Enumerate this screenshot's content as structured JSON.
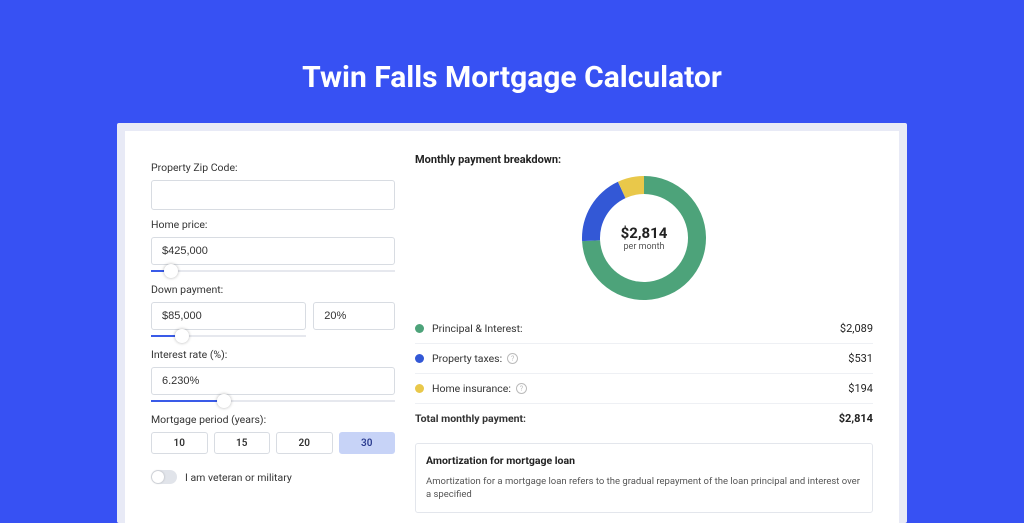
{
  "colors": {
    "page_bg": "#3751f3",
    "panel_wrap_bg": "#e8eaf6",
    "panel_bg": "#ffffff",
    "input_border": "#d8dce2",
    "slider_fill": "#3a5be8",
    "slider_rail": "#e6e8ee",
    "period_active_bg": "#c7d3f7",
    "divider": "#eef0f4"
  },
  "title": "Twin Falls Mortgage Calculator",
  "fields": {
    "zip": {
      "label": "Property Zip Code:",
      "value": ""
    },
    "home_price": {
      "label": "Home price:",
      "value": "$425,000",
      "slider_pct": 8
    },
    "down_payment": {
      "label": "Down payment:",
      "amount": "$85,000",
      "pct": "20%",
      "slider_pct": 20
    },
    "interest_rate": {
      "label": "Interest rate (%):",
      "value": "6.230%",
      "slider_pct": 30
    },
    "period": {
      "label": "Mortgage period (years):",
      "options": [
        "10",
        "15",
        "20",
        "30"
      ],
      "active_index": 3
    },
    "veteran": {
      "label": "I am veteran or military",
      "on": false
    }
  },
  "breakdown": {
    "title": "Monthly payment breakdown:",
    "center_amount": "$2,814",
    "center_sub": "per month",
    "donut": {
      "size": 124,
      "thickness": 18,
      "segments": [
        {
          "color": "#4da37a",
          "pct": 74.2
        },
        {
          "color": "#3358d6",
          "pct": 18.9
        },
        {
          "color": "#e9c84a",
          "pct": 6.9
        }
      ]
    },
    "rows": [
      {
        "swatch": "#4da37a",
        "label": "Principal & Interest:",
        "value": "$2,089",
        "help": false
      },
      {
        "swatch": "#3358d6",
        "label": "Property taxes:",
        "value": "$531",
        "help": true
      },
      {
        "swatch": "#e9c84a",
        "label": "Home insurance:",
        "value": "$194",
        "help": true
      }
    ],
    "total": {
      "label": "Total monthly payment:",
      "value": "$2,814"
    }
  },
  "amortization": {
    "title": "Amortization for mortgage loan",
    "text": "Amortization for a mortgage loan refers to the gradual repayment of the loan principal and interest over a specified"
  }
}
